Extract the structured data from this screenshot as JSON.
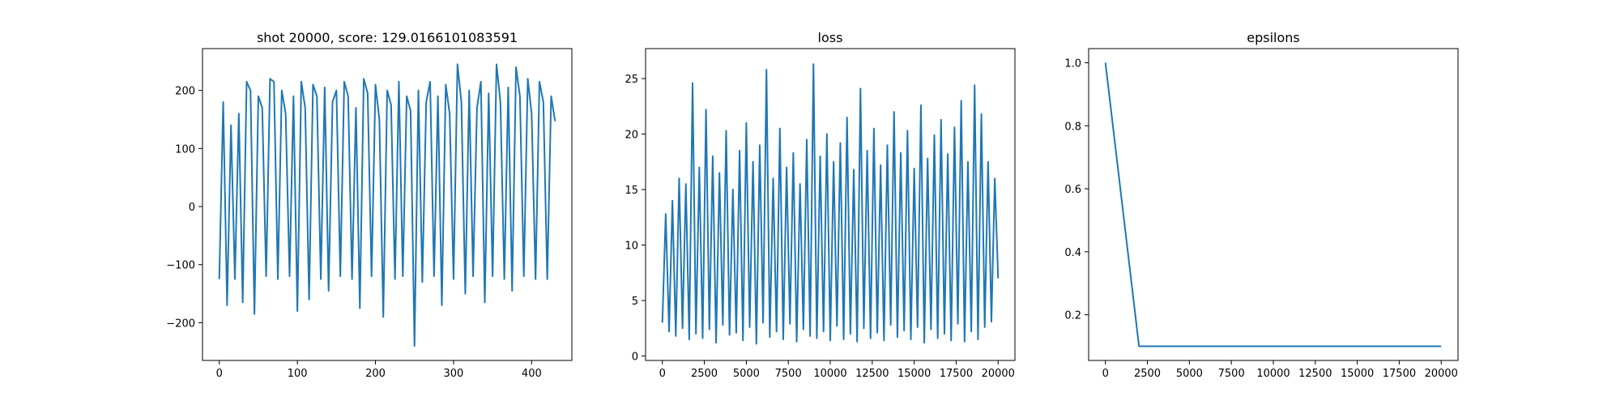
{
  "chart_data": [
    {
      "type": "line",
      "title": "shot 20000, score: 129.0166101083591",
      "color": "#1f77b4",
      "x": [
        0,
        5,
        10,
        15,
        20,
        25,
        30,
        35,
        40,
        45,
        50,
        55,
        60,
        65,
        70,
        75,
        80,
        85,
        90,
        95,
        100,
        105,
        110,
        115,
        120,
        125,
        130,
        135,
        140,
        145,
        150,
        155,
        160,
        165,
        170,
        175,
        180,
        185,
        190,
        195,
        200,
        205,
        210,
        215,
        220,
        225,
        230,
        235,
        240,
        245,
        250,
        255,
        260,
        265,
        270,
        275,
        280,
        285,
        290,
        295,
        300,
        305,
        310,
        315,
        320,
        325,
        330,
        335,
        340,
        345,
        350,
        355,
        360,
        365,
        370,
        375,
        380,
        385,
        390,
        395,
        400,
        405,
        410,
        415,
        420,
        425,
        430
      ],
      "values": [
        -125,
        180,
        -170,
        140,
        -125,
        160,
        -165,
        215,
        200,
        -185,
        190,
        170,
        -120,
        220,
        215,
        -125,
        200,
        160,
        -120,
        190,
        -180,
        215,
        170,
        -160,
        210,
        190,
        -125,
        205,
        -145,
        180,
        200,
        -120,
        215,
        190,
        -125,
        170,
        -175,
        220,
        195,
        -120,
        210,
        150,
        -190,
        200,
        175,
        -125,
        215,
        -120,
        190,
        165,
        -240,
        200,
        -130,
        180,
        215,
        -120,
        190,
        -170,
        210,
        160,
        -125,
        245,
        180,
        -150,
        200,
        -120,
        170,
        215,
        -165,
        195,
        -120,
        245,
        180,
        -125,
        205,
        -145,
        240,
        190,
        -120,
        220,
        160,
        -125,
        215,
        180,
        -125,
        190,
        147
      ],
      "xlim": [
        -21.5,
        451.5
      ],
      "ylim": [
        -265,
        272
      ],
      "xticks": [
        0,
        100,
        200,
        300,
        400
      ],
      "yticks": [
        {
          "value": -200,
          "label": "−200"
        },
        {
          "value": -100,
          "label": "−100"
        },
        0,
        100,
        200
      ]
    },
    {
      "type": "line",
      "title": "loss",
      "color": "#1f77b4",
      "x": [
        0,
        200,
        400,
        600,
        800,
        1000,
        1200,
        1400,
        1600,
        1800,
        2000,
        2200,
        2400,
        2600,
        2800,
        3000,
        3200,
        3400,
        3600,
        3800,
        4000,
        4200,
        4400,
        4600,
        4800,
        5000,
        5200,
        5400,
        5600,
        5800,
        6000,
        6200,
        6400,
        6600,
        6800,
        7000,
        7200,
        7400,
        7600,
        7800,
        8000,
        8200,
        8400,
        8600,
        8800,
        9000,
        9200,
        9400,
        9600,
        9800,
        10000,
        10200,
        10400,
        10600,
        10800,
        11000,
        11200,
        11400,
        11600,
        11800,
        12000,
        12200,
        12400,
        12600,
        12800,
        13000,
        13200,
        13400,
        13600,
        13800,
        14000,
        14200,
        14400,
        14600,
        14800,
        15000,
        15200,
        15400,
        15600,
        15800,
        16000,
        16200,
        16400,
        16600,
        16800,
        17000,
        17200,
        17400,
        17600,
        17800,
        18000,
        18200,
        18400,
        18600,
        18800,
        19000,
        19200,
        19400,
        19600,
        19800,
        20000
      ],
      "values": [
        3,
        12.8,
        2.2,
        14,
        1.8,
        16,
        2.5,
        15.5,
        1.5,
        24.6,
        2,
        17,
        1.6,
        22.2,
        2.4,
        18,
        1.2,
        16.5,
        2.8,
        20.3,
        1.9,
        15,
        2.1,
        18.5,
        1.4,
        21,
        2.6,
        17.5,
        1.1,
        19,
        3,
        25.8,
        1.7,
        16,
        2.2,
        20.5,
        1.5,
        17,
        2.9,
        18.3,
        1.3,
        15.5,
        2.4,
        19.5,
        1.8,
        26.3,
        1.6,
        18,
        2.2,
        20,
        1.4,
        17.5,
        2.7,
        19.2,
        1.5,
        21.5,
        2,
        16.8,
        1.3,
        24.1,
        2.5,
        18.5,
        1.6,
        20.5,
        2.1,
        17.2,
        1.4,
        19,
        2.8,
        22,
        1.7,
        18.3,
        2.3,
        20.3,
        1.5,
        16.9,
        2.6,
        22.6,
        1.2,
        17.8,
        2.4,
        19.9,
        1.6,
        21.3,
        2,
        18.2,
        1.4,
        20.6,
        2.9,
        23,
        1.3,
        17.5,
        2.2,
        24.4,
        1.5,
        21.8,
        2.6,
        17.5,
        3.1,
        16,
        7
      ],
      "xlim": [
        -1000,
        21000
      ],
      "ylim": [
        -0.4,
        27.7
      ],
      "xticks": [
        0,
        2500,
        5000,
        7500,
        10000,
        12500,
        15000,
        17500,
        20000
      ],
      "yticks": [
        0,
        5,
        10,
        15,
        20,
        25
      ]
    },
    {
      "type": "line",
      "title": "epsilons",
      "color": "#1f77b4",
      "x": [
        0,
        2000,
        20000
      ],
      "values": [
        1,
        0.1,
        0.1
      ],
      "xlim": [
        -1000,
        21000
      ],
      "ylim": [
        0.055,
        1.045
      ],
      "xticks": [
        0,
        2500,
        5000,
        7500,
        10000,
        12500,
        15000,
        17500,
        20000
      ],
      "yticks": [
        0.2,
        0.4,
        0.6,
        0.8,
        {
          "value": 1,
          "label": "1.0"
        }
      ]
    }
  ]
}
